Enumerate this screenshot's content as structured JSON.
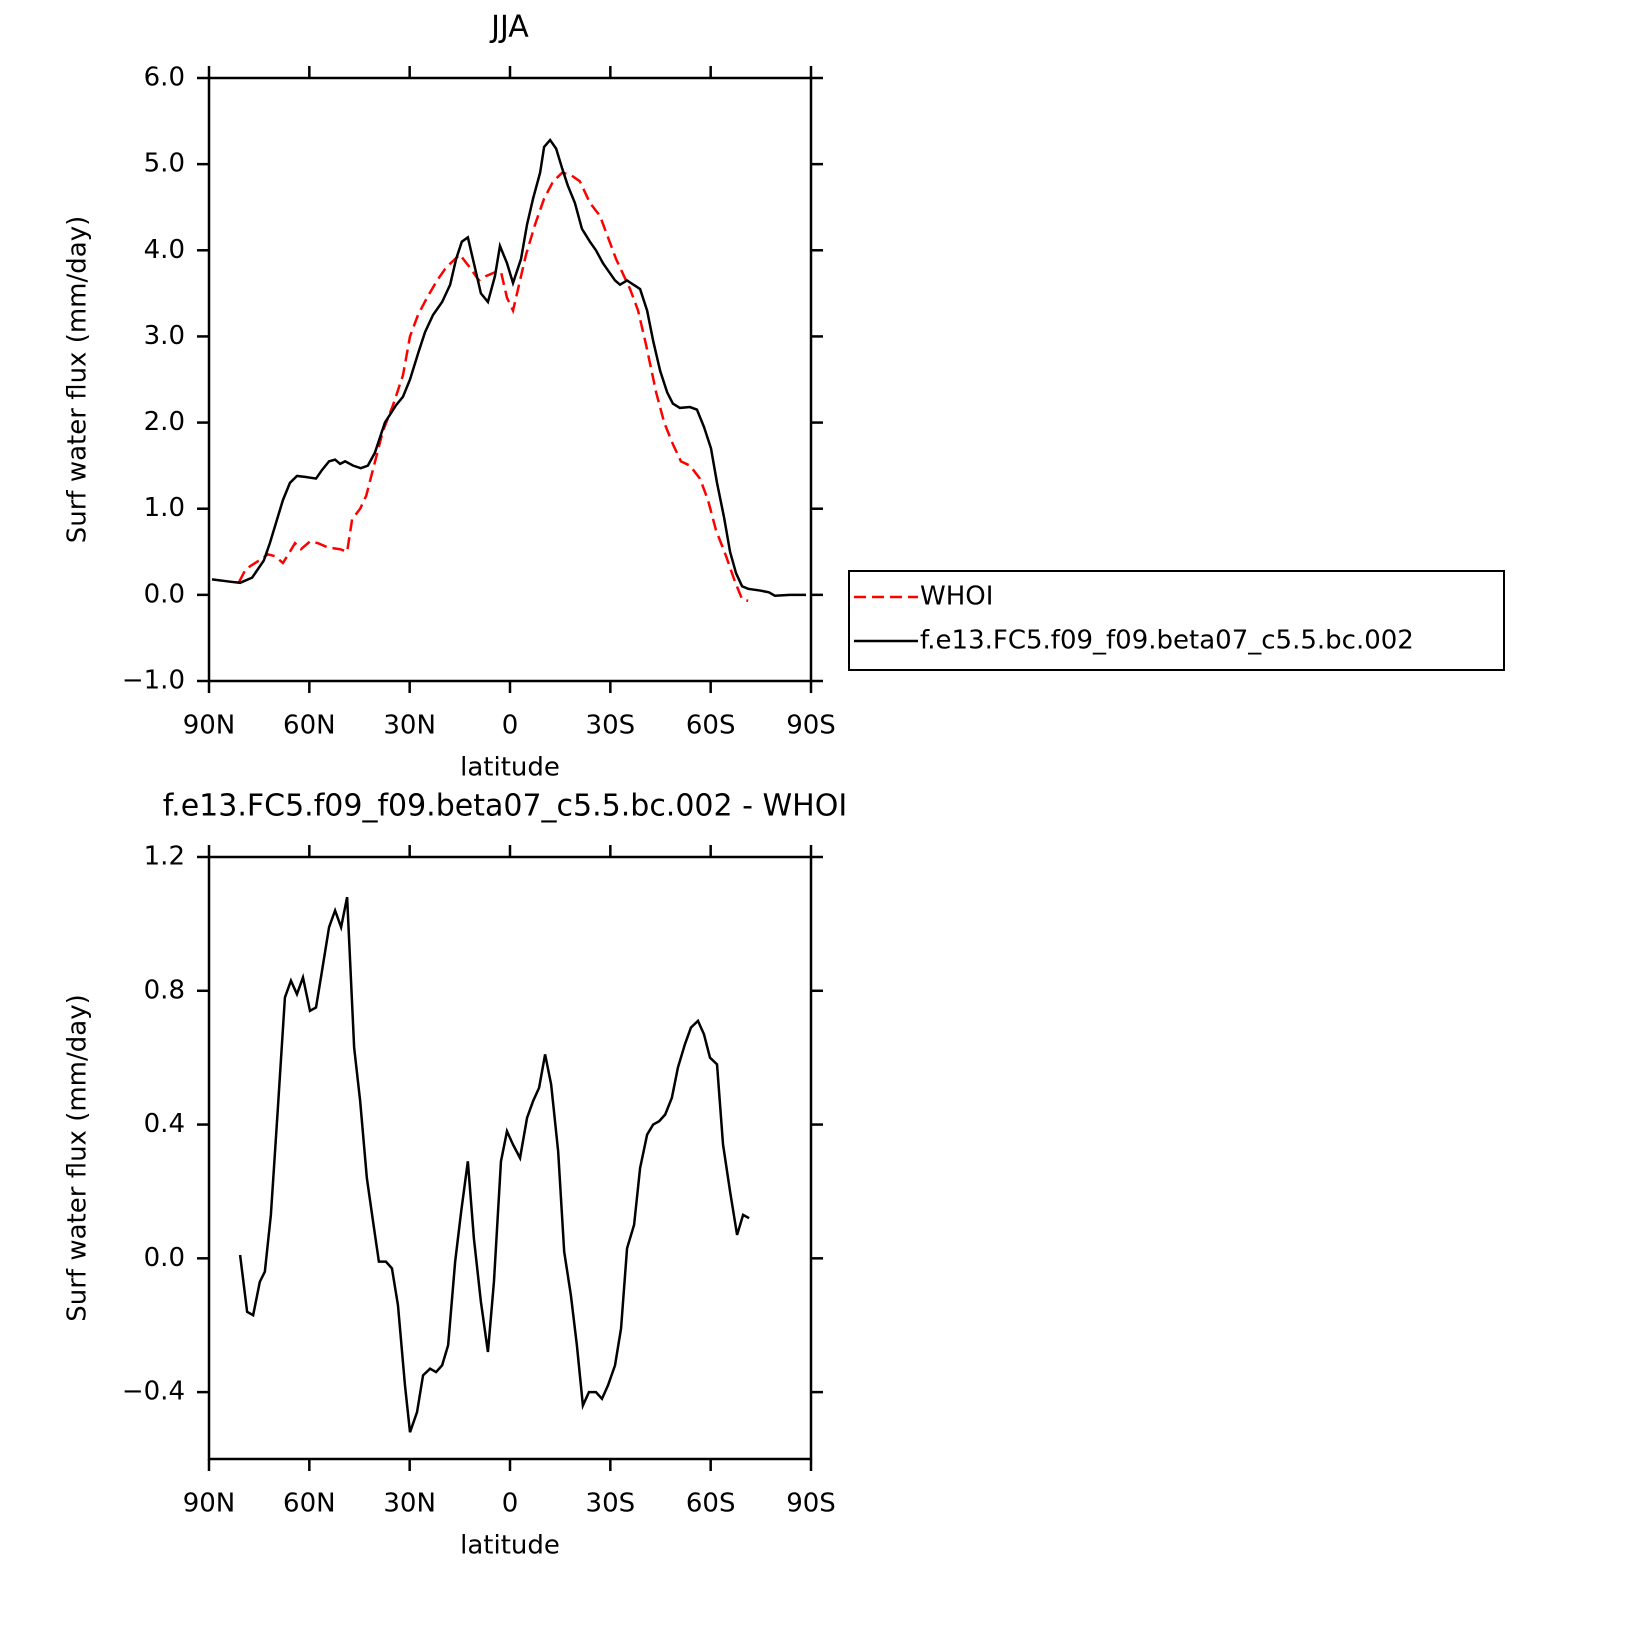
{
  "chart_data": [
    {
      "type": "line",
      "title": "JJA",
      "xlabel": "latitude",
      "ylabel": "Surf water flux (mm/day)",
      "xlim": [
        90,
        -90
      ],
      "xticks": [
        {
          "value": 90,
          "label": "90N"
        },
        {
          "value": 60,
          "label": "60N"
        },
        {
          "value": 30,
          "label": "30N"
        },
        0,
        {
          "value": -30,
          "label": "30S"
        },
        {
          "value": -60,
          "label": "60S"
        },
        {
          "value": -90,
          "label": "90S"
        }
      ],
      "ylim": [
        -1,
        6
      ],
      "yticks": [
        {
          "value": -1,
          "label": "−1.0"
        },
        {
          "value": 0,
          "label": "0.0"
        },
        {
          "value": 1,
          "label": "1.0"
        },
        {
          "value": 2,
          "label": "2.0"
        },
        {
          "value": 3,
          "label": "3.0"
        },
        {
          "value": 4,
          "label": "4.0"
        },
        {
          "value": 5,
          "label": "5.0"
        },
        {
          "value": 6,
          "label": "6.0"
        }
      ],
      "legend": "right",
      "series": [
        {
          "name": "WHOI",
          "color": "#ff0000",
          "dash": true,
          "x": [
            81,
            79,
            77,
            75,
            72.4,
            70.3,
            67.9,
            65.8,
            64.3,
            62.5,
            59.8,
            57.4,
            54.4,
            50.8,
            48.7,
            47.2,
            44.8,
            43,
            41,
            38,
            35,
            32,
            29.9,
            27.5,
            24.8,
            21.8,
            19.1,
            16.4,
            15,
            12,
            9.3,
            7.2,
            4.2,
            2.7,
            0.9,
            -0.9,
            -2.4,
            -4.8,
            -7.5,
            -10.2,
            -12.9,
            -15.6,
            -18,
            -20.9,
            -23.9,
            -26.9,
            -29.3,
            -31.7,
            -35.9,
            -38.3,
            -40.7,
            -43.7,
            -46.1,
            -48.7,
            -51.1,
            -53.8,
            -56.8,
            -59.2,
            -61.6,
            -64.6,
            -67.3,
            -69.4,
            -71.2
          ],
          "values": [
            0.15,
            0.3,
            0.35,
            0.4,
            0.47,
            0.45,
            0.37,
            0.5,
            0.6,
            0.53,
            0.62,
            0.6,
            0.55,
            0.53,
            0.5,
            0.88,
            1.0,
            1.15,
            1.45,
            1.9,
            2.2,
            2.55,
            3.0,
            3.25,
            3.45,
            3.65,
            3.8,
            3.9,
            3.95,
            3.8,
            3.65,
            3.7,
            3.75,
            3.75,
            3.45,
            3.3,
            3.55,
            3.95,
            4.3,
            4.6,
            4.8,
            4.9,
            4.88,
            4.8,
            4.55,
            4.4,
            4.15,
            3.9,
            3.55,
            3.3,
            2.9,
            2.35,
            2.0,
            1.75,
            1.55,
            1.5,
            1.35,
            1.1,
            0.75,
            0.45,
            0.15,
            -0.05,
            -0.07
          ]
        },
        {
          "name": "f.e13.FC5.f09_f09.beta07_c5.5.bc.002",
          "color": "#000000",
          "dash": false,
          "x": [
            89.1,
            83.1,
            80.7,
            77.1,
            73.6,
            71.8,
            67.9,
            65.8,
            63.7,
            61.3,
            58,
            56.2,
            54.1,
            52.3,
            50.8,
            49.3,
            46.9,
            44.6,
            42.5,
            40.4,
            37.4,
            34.1,
            32,
            29.9,
            27.5,
            25.4,
            23,
            20.3,
            17.9,
            16.1,
            14.4,
            12.6,
            10.5,
            8.7,
            6.6,
            4.5,
            3,
            0.9,
            -0.9,
            -3.3,
            -5.1,
            -6.9,
            -9,
            -10.2,
            -12,
            -13.8,
            -15.6,
            -17.3,
            -19.4,
            -21.5,
            -23.9,
            -25.7,
            -27.8,
            -31.4,
            -32.9,
            -35,
            -38.9,
            -41,
            -42.8,
            -44.9,
            -47,
            -48.7,
            -50.8,
            -53.8,
            -55.9,
            -58,
            -60.1,
            -61.9,
            -64,
            -65.8,
            -67.6,
            -69.4,
            -71.2,
            -74.8,
            -77.4,
            -79.2,
            -83.7,
            -88.5
          ],
          "values": [
            0.18,
            0.15,
            0.14,
            0.2,
            0.4,
            0.6,
            1.1,
            1.3,
            1.38,
            1.37,
            1.35,
            1.45,
            1.55,
            1.57,
            1.52,
            1.55,
            1.5,
            1.47,
            1.5,
            1.65,
            2.0,
            2.2,
            2.3,
            2.5,
            2.8,
            3.05,
            3.25,
            3.4,
            3.6,
            3.9,
            4.1,
            4.15,
            3.8,
            3.5,
            3.4,
            3.7,
            4.05,
            3.85,
            3.62,
            3.9,
            4.3,
            4.6,
            4.9,
            5.2,
            5.28,
            5.18,
            4.95,
            4.75,
            4.55,
            4.25,
            4.1,
            4.0,
            3.85,
            3.65,
            3.6,
            3.65,
            3.55,
            3.3,
            2.95,
            2.6,
            2.35,
            2.22,
            2.17,
            2.18,
            2.15,
            1.95,
            1.7,
            1.3,
            0.9,
            0.5,
            0.25,
            0.1,
            0.07,
            0.05,
            0.03,
            -0.01,
            0.0,
            0.0
          ]
        }
      ]
    },
    {
      "type": "line",
      "title": "f.e13.FC5.f09_f09.beta07_c5.5.bc.002 - WHOI",
      "xlabel": "latitude",
      "ylabel": "Surf water flux (mm/day)",
      "xlim": [
        90,
        -90
      ],
      "xticks": [
        {
          "value": 90,
          "label": "90N"
        },
        {
          "value": 60,
          "label": "60N"
        },
        {
          "value": 30,
          "label": "30N"
        },
        0,
        {
          "value": -30,
          "label": "30S"
        },
        {
          "value": -60,
          "label": "60S"
        },
        {
          "value": -90,
          "label": "90S"
        }
      ],
      "ylim": [
        -0.6,
        1.2
      ],
      "yticks": [
        {
          "value": -0.4,
          "label": "−0.4"
        },
        {
          "value": 0,
          "label": "0.0"
        },
        0.4,
        0.8,
        1.2
      ],
      "series": [
        {
          "color": "#000000",
          "dash": false,
          "x": [
            80.7,
            78.6,
            76.8,
            74.8,
            73.3,
            71.5,
            69.4,
            67.3,
            65.5,
            63.7,
            61.9,
            59.8,
            58,
            56.2,
            54.1,
            52.3,
            50.5,
            48.7,
            46.6,
            44.8,
            42.8,
            40.8,
            39.2,
            37.1,
            35.3,
            33.5,
            31.4,
            29.9,
            27.8,
            26,
            23.9,
            22.1,
            20.3,
            18.5,
            16.4,
            14.6,
            12.6,
            10.8,
            8.7,
            6.6,
            4.8,
            2.7,
            0.9,
            -0.9,
            -3,
            -5.1,
            -6.9,
            -8.7,
            -10.5,
            -12.3,
            -14.4,
            -16.2,
            -18.2,
            -20,
            -21.8,
            -23.6,
            -25.7,
            -27.5,
            -29.3,
            -31.4,
            -33.2,
            -35,
            -37.1,
            -38.9,
            -41,
            -42.8,
            -44.6,
            -46.4,
            -48.4,
            -50.2,
            -52.3,
            -54.1,
            -56.2,
            -58,
            -59.8,
            -61.9,
            -63.7,
            -65.8,
            -67.9,
            -69.7,
            -71.5
          ],
          "values": [
            0.01,
            -0.16,
            -0.17,
            -0.07,
            -0.04,
            0.13,
            0.45,
            0.78,
            0.83,
            0.79,
            0.84,
            0.74,
            0.75,
            0.86,
            0.99,
            1.04,
            0.99,
            1.08,
            0.63,
            0.47,
            0.24,
            0.1,
            -0.01,
            -0.01,
            -0.03,
            -0.14,
            -0.38,
            -0.52,
            -0.46,
            -0.35,
            -0.33,
            -0.34,
            -0.32,
            -0.26,
            -0.01,
            0.14,
            0.29,
            0.06,
            -0.13,
            -0.28,
            -0.07,
            0.29,
            0.38,
            0.34,
            0.3,
            0.42,
            0.47,
            0.51,
            0.61,
            0.52,
            0.32,
            0.02,
            -0.11,
            -0.26,
            -0.44,
            -0.4,
            -0.4,
            -0.42,
            -0.38,
            -0.32,
            -0.21,
            0.03,
            0.1,
            0.27,
            0.37,
            0.4,
            0.41,
            0.43,
            0.48,
            0.57,
            0.64,
            0.69,
            0.71,
            0.67,
            0.6,
            0.58,
            0.34,
            0.2,
            0.07,
            0.13,
            0.12
          ]
        }
      ]
    }
  ]
}
